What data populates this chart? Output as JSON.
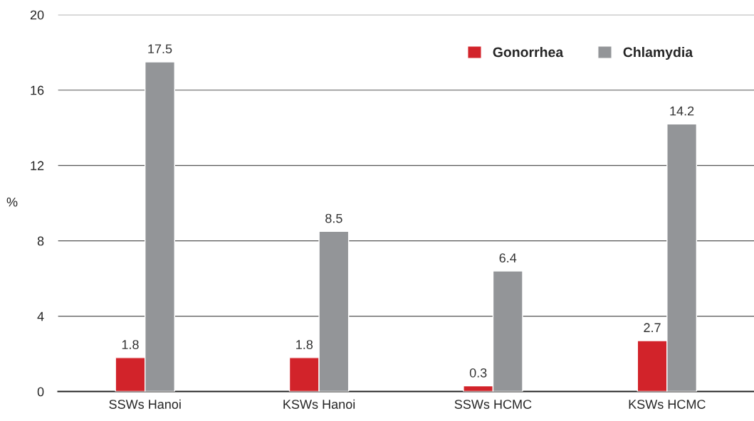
{
  "chart_data": {
    "type": "bar",
    "ylabel": "%",
    "categories": [
      "SSWs Hanoi",
      "KSWs Hanoi",
      "SSWs HCMC",
      "KSWs HCMC"
    ],
    "series": [
      {
        "name": "Gonorrhea",
        "color": "#d2232a",
        "values": [
          1.8,
          1.8,
          0.3,
          2.7
        ]
      },
      {
        "name": "Chlamydia",
        "color": "#939598",
        "values": [
          17.5,
          8.5,
          6.4,
          14.2
        ]
      }
    ],
    "ylim": [
      0,
      20
    ],
    "yticks": [
      0,
      4,
      8,
      12,
      16,
      20
    ],
    "grid": "y",
    "legend": "top right",
    "data_labels": true
  }
}
